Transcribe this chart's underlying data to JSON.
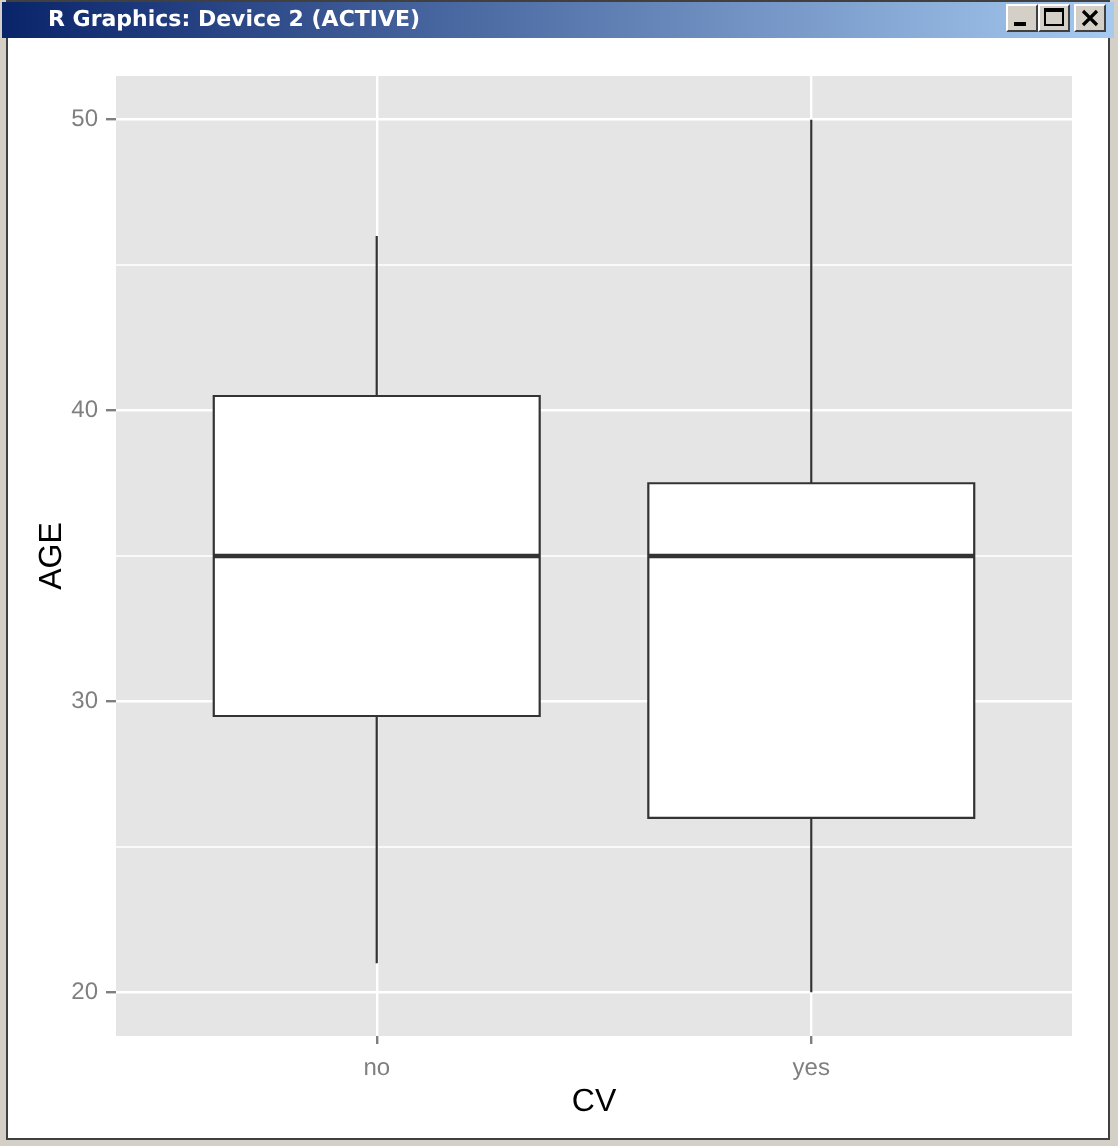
{
  "chart_data": {
    "type": "box",
    "xlabel": "CV",
    "ylabel": "AGE",
    "annotations": [
      "R Graphics: Device 2 (ACTIVE)"
    ],
    "categories": [
      "no",
      "yes"
    ],
    "boxes": [
      {
        "low": 21,
        "q1": 29.5,
        "median": 35,
        "q3": 40.5,
        "high": 46
      },
      {
        "low": 20,
        "q1": 26,
        "median": 35,
        "q3": 37.5,
        "high": 50
      }
    ],
    "color": "#ffffff",
    "ylim": [
      18.5,
      51.5
    ],
    "yticks": [
      20,
      {
        "value": 25,
        "label": null
      },
      30,
      {
        "value": 35,
        "label": null
      },
      40,
      {
        "value": 45,
        "label": null
      },
      50
    ],
    "grid": true
  }
}
